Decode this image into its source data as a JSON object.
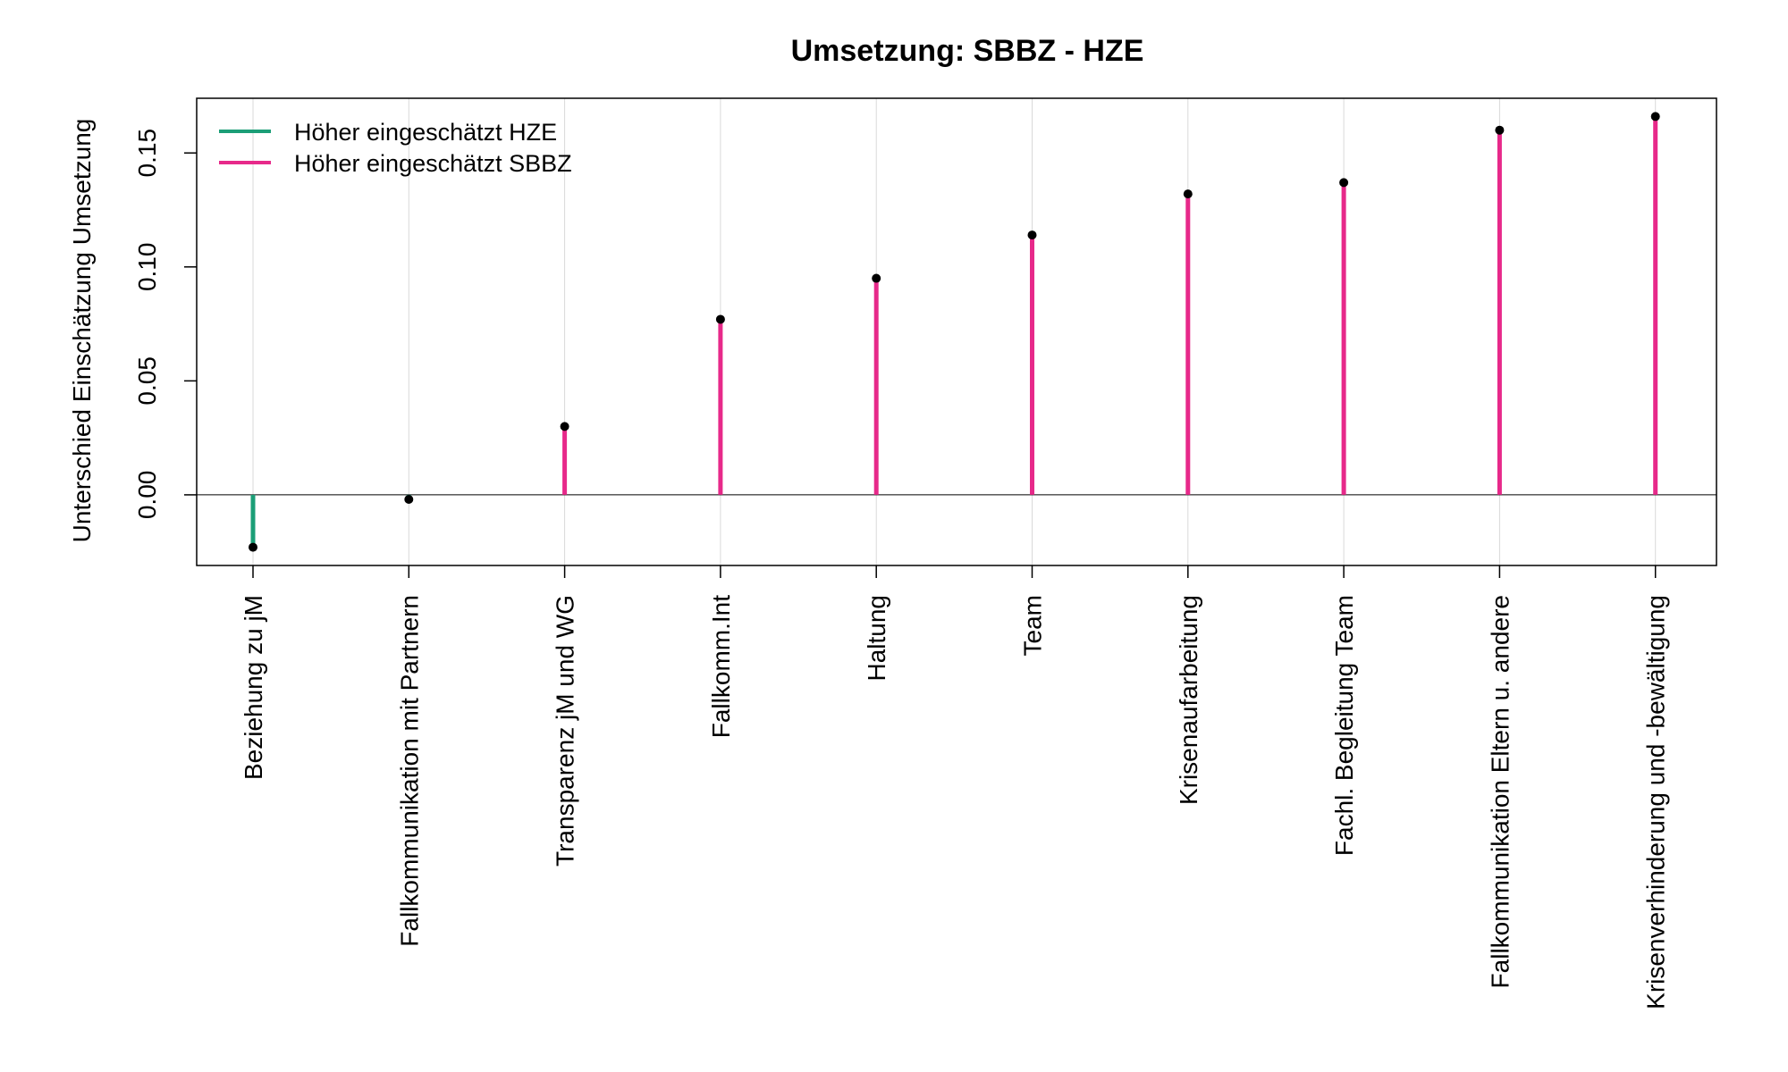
{
  "chart_data": {
    "type": "lollipop",
    "title": "Umsetzung: SBBZ - HZE",
    "ylabel": "Unterschied Einschätzung Umsetzung",
    "xlabel": "",
    "ylim": [
      -0.031,
      0.174
    ],
    "yticks": [
      0.0,
      0.05,
      0.1,
      0.15
    ],
    "ytick_labels": [
      "0.00",
      "0.05",
      "0.10",
      "0.15"
    ],
    "grid": "vertical light grey lines at each category",
    "baseline": 0,
    "categories": [
      "Beziehung zu jM",
      "Fallkommunikation mit Partnern",
      "Transparenz jM und WG",
      "Fallkomm.Int",
      "Haltung",
      "Team",
      "Krisenaufarbeitung",
      "Fachl. Begleitung Team",
      "Fallkommunikation Eltern u. andere",
      "Krisenverhinderung und -bewältigung"
    ],
    "values": [
      -0.023,
      -0.002,
      0.03,
      0.077,
      0.095,
      0.114,
      0.132,
      0.137,
      0.16,
      0.166
    ],
    "legend": {
      "position": "top-left",
      "entries": [
        {
          "label": "Höher eingeschätzt HZE",
          "color": "#1b9e77"
        },
        {
          "label": "Höher eingeschätzt SBBZ",
          "color": "#e7298a"
        }
      ]
    },
    "colors": {
      "negative": "#1b9e77",
      "positive": "#e7298a",
      "point": "#000000",
      "grid": "#d9d9d9",
      "baseline": "#000000"
    }
  }
}
